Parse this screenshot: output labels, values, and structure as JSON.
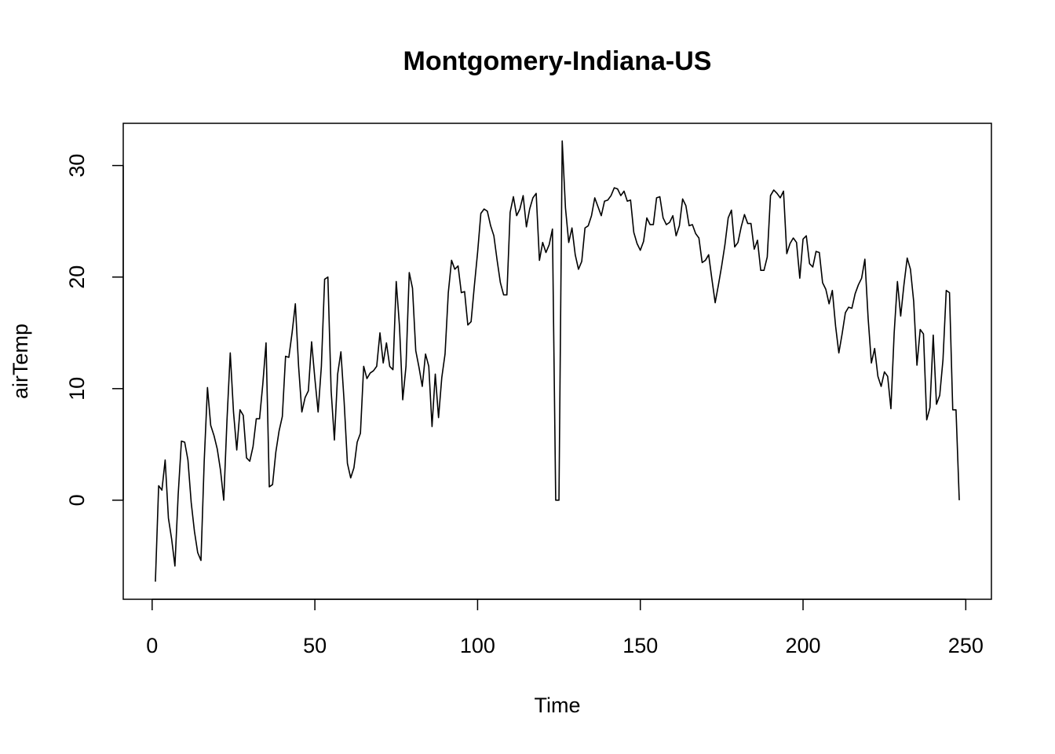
{
  "chart_data": {
    "type": "line",
    "title": "Montgomery-Indiana-US",
    "x_label": "Time",
    "y_label": "airTemp",
    "x": [
      1,
      2,
      3,
      4,
      5,
      6,
      7,
      8,
      9,
      10,
      11,
      12,
      13,
      14,
      15,
      16,
      17,
      18,
      19,
      20,
      21,
      22,
      23,
      24,
      25,
      26,
      27,
      28,
      29,
      30,
      31,
      32,
      33,
      34,
      35,
      36,
      37,
      38,
      39,
      40,
      41,
      42,
      43,
      44,
      45,
      46,
      47,
      48,
      49,
      50,
      51,
      52,
      53,
      54,
      55,
      56,
      57,
      58,
      59,
      60,
      61,
      62,
      63,
      64,
      65,
      66,
      67,
      68,
      69,
      70,
      71,
      72,
      73,
      74,
      75,
      76,
      77,
      78,
      79,
      80,
      81,
      82,
      83,
      84,
      85,
      86,
      87,
      88,
      89,
      90,
      91,
      92,
      93,
      94,
      95,
      96,
      97,
      98,
      99,
      100,
      101,
      102,
      103,
      104,
      105,
      106,
      107,
      108,
      109,
      110,
      111,
      112,
      113,
      114,
      115,
      116,
      117,
      118,
      119,
      120,
      121,
      122,
      123,
      124,
      125,
      126,
      127,
      128,
      129,
      130,
      131,
      132,
      133,
      134,
      135,
      136,
      137,
      138,
      139,
      140,
      141,
      142,
      143,
      144,
      145,
      146,
      147,
      148,
      149,
      150,
      151,
      152,
      153,
      154,
      155,
      156,
      157,
      158,
      159,
      160,
      161,
      162,
      163,
      164,
      165,
      166,
      167,
      168,
      169,
      170,
      171,
      172,
      173,
      174,
      175,
      176,
      177,
      178,
      179,
      180,
      181,
      182,
      183,
      184,
      185,
      186,
      187,
      188,
      189,
      190,
      191,
      192,
      193,
      194,
      195,
      196,
      197,
      198,
      199,
      200,
      201,
      202,
      203,
      204,
      205,
      206,
      207,
      208,
      209,
      210,
      211,
      212,
      213,
      214,
      215,
      216,
      217,
      218,
      219,
      220,
      221,
      222,
      223,
      224,
      225,
      226,
      227,
      228,
      229,
      230,
      231,
      232,
      233,
      234,
      235,
      236,
      237,
      238,
      239,
      240,
      241,
      242,
      243,
      244,
      245,
      246,
      247,
      248
    ],
    "series": [
      {
        "name": "airTemp",
        "color": "#000000",
        "values": [
          -7.3,
          1.3,
          0.9,
          3.6,
          -1.6,
          -3.5,
          -5.9,
          0.5,
          5.3,
          5.2,
          3.6,
          -0.2,
          -2.8,
          -4.7,
          -5.4,
          3.5,
          10.1,
          6.7,
          5.8,
          4.6,
          2.7,
          0.0,
          7.2,
          13.2,
          7.9,
          4.5,
          8.1,
          7.6,
          3.8,
          3.5,
          4.8,
          7.3,
          7.3,
          10.4,
          14.1,
          1.2,
          1.4,
          4.3,
          6.2,
          7.5,
          12.9,
          12.8,
          15.0,
          17.6,
          12.0,
          7.9,
          9.2,
          9.8,
          14.2,
          10.9,
          7.9,
          12.0,
          19.8,
          20.0,
          9.8,
          5.4,
          11.3,
          13.3,
          8.8,
          3.3,
          2.0,
          2.9,
          5.2,
          6.0,
          12.0,
          10.9,
          11.4,
          11.6,
          12.0,
          15.0,
          12.3,
          14.1,
          12.0,
          11.7,
          19.6,
          15.6,
          9.0,
          12.0,
          20.4,
          19.0,
          13.4,
          11.9,
          10.2,
          13.1,
          12.0,
          6.6,
          11.3,
          7.4,
          11.0,
          13.1,
          18.6,
          21.5,
          20.7,
          21.0,
          18.6,
          18.7,
          15.7,
          16.0,
          19.2,
          22.2,
          25.7,
          26.1,
          25.9,
          24.6,
          23.7,
          21.5,
          19.5,
          18.4,
          18.4,
          25.8,
          27.2,
          25.5,
          26.1,
          27.3,
          24.5,
          26.1,
          27.1,
          27.5,
          21.5,
          23.1,
          22.2,
          22.9,
          24.3,
          0.0,
          0.0,
          32.2,
          26.2,
          23.1,
          24.4,
          22.0,
          20.7,
          21.4,
          24.4,
          24.6,
          25.5,
          27.1,
          26.3,
          25.5,
          26.8,
          26.9,
          27.3,
          28.0,
          27.9,
          27.3,
          27.7,
          26.8,
          26.9,
          24.0,
          23.0,
          22.4,
          23.2,
          25.3,
          24.7,
          24.7,
          27.1,
          27.2,
          25.3,
          24.7,
          24.9,
          25.5,
          23.7,
          24.6,
          27.0,
          26.4,
          24.6,
          24.7,
          23.9,
          23.5,
          21.3,
          21.5,
          22.0,
          19.8,
          17.7,
          19.3,
          21.0,
          22.9,
          25.3,
          26.0,
          22.7,
          23.1,
          24.5,
          25.6,
          24.8,
          24.8,
          22.5,
          23.3,
          20.6,
          20.6,
          21.8,
          27.3,
          27.8,
          27.5,
          27.1,
          27.7,
          22.1,
          23.0,
          23.5,
          23.1,
          19.9,
          23.4,
          23.7,
          21.2,
          20.9,
          22.3,
          22.2,
          19.5,
          18.9,
          17.6,
          18.8,
          15.6,
          13.2,
          14.9,
          16.8,
          17.3,
          17.2,
          18.5,
          19.3,
          19.9,
          21.6,
          16.3,
          12.3,
          13.6,
          11.1,
          10.2,
          11.5,
          11.1,
          8.2,
          15.0,
          19.6,
          16.5,
          19.3,
          21.7,
          20.7,
          17.8,
          12.1,
          15.3,
          14.9,
          7.2,
          8.3,
          14.8,
          8.6,
          9.4,
          12.6,
          18.8,
          18.6,
          8.1,
          8.1,
          0.0
        ]
      }
    ],
    "xlim": [
      -8.88,
      257.88
    ],
    "xticks": [
      0,
      50,
      100,
      150,
      200,
      250
    ],
    "ylim": [
      -8.88,
      33.78
    ],
    "yticks": [
      0,
      10,
      20,
      30
    ],
    "grid": false
  }
}
